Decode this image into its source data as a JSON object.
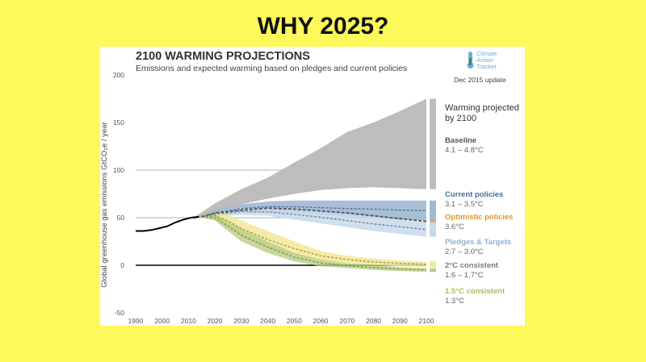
{
  "headline": "WHY 2025?",
  "logo": {
    "line1": "Climate",
    "line2": "Action",
    "line3": "Tracker",
    "icon": "thermometer-icon"
  },
  "update_note": "Dec 2015 update",
  "chart_data": {
    "type": "area",
    "title": "2100 WARMING PROJECTIONS",
    "subtitle": "Emissions and expected warming based on pledges and current policies",
    "ylabel": "Global greenhouse gas emissions  GtCO₂e / year",
    "xlabel": "",
    "xlim": [
      1990,
      2100
    ],
    "ylim": [
      -50,
      200
    ],
    "x_ticks": [
      "1990",
      "2000",
      "2010",
      "2020",
      "2030",
      "2040",
      "2050",
      "2060",
      "2070",
      "2080",
      "2090",
      "2100"
    ],
    "y_ticks": [
      "200",
      "150",
      "100",
      "50",
      "0",
      "-50"
    ],
    "gridlines": [
      100,
      50,
      0
    ],
    "legend_title": "Warming projected by 2100",
    "historical": {
      "x": [
        1990,
        1993,
        1996,
        1999,
        2002,
        2005,
        2008,
        2011,
        2014
      ],
      "y": [
        36,
        36,
        37,
        39,
        41,
        45,
        48,
        50,
        51
      ]
    },
    "series": [
      {
        "name": "Baseline",
        "range": "4.1 – 4.8°C",
        "color": "#bdbdbd",
        "x": [
          2012,
          2020,
          2030,
          2040,
          2050,
          2060,
          2070,
          2080,
          2090,
          2100
        ],
        "lower": [
          48,
          55,
          64,
          70,
          75,
          79,
          81,
          82,
          81,
          80
        ],
        "upper": [
          50,
          65,
          80,
          92,
          108,
          123,
          140,
          150,
          162,
          175
        ]
      },
      {
        "name": "Current policies",
        "range": "3.1 – 3.5°C",
        "color": "#9fb8d4",
        "x": [
          2015,
          2020,
          2030,
          2040,
          2050,
          2060,
          2070,
          2080,
          2090,
          2100
        ],
        "lower": [
          50,
          52,
          55,
          56,
          55,
          53,
          51,
          50,
          48,
          47
        ],
        "upper": [
          52,
          58,
          64,
          67,
          68,
          68,
          68,
          68,
          68,
          68
        ]
      },
      {
        "name": "Optimistic policies",
        "range": "3.6°C",
        "color": "#e0a94a",
        "x": [
          2015,
          2020,
          2030,
          2040,
          2050,
          2060,
          2070,
          2080,
          2090,
          2100
        ],
        "y": [
          51,
          55,
          58,
          60,
          59,
          57,
          55,
          52,
          49,
          46
        ]
      },
      {
        "name": "Pledges & Targets",
        "range": "2.7 – 3.0°C",
        "color": "#c7d9ea",
        "x": [
          2015,
          2020,
          2030,
          2040,
          2050,
          2060,
          2070,
          2080,
          2090,
          2100
        ],
        "lower": [
          50,
          51,
          53,
          52,
          48,
          44,
          40,
          36,
          33,
          30
        ],
        "upper": [
          52,
          56,
          60,
          60,
          59,
          57,
          54,
          51,
          48,
          45
        ]
      },
      {
        "name": "2°C consistent",
        "range": "1.6 – 1.7°C",
        "color": "#f2e79a",
        "x": [
          2015,
          2020,
          2025,
          2030,
          2040,
          2050,
          2060,
          2070,
          2080,
          2090,
          2100
        ],
        "lower": [
          50,
          48,
          40,
          30,
          18,
          10,
          5,
          2,
          0,
          -1,
          -2
        ],
        "upper": [
          52,
          56,
          53,
          47,
          36,
          25,
          15,
          10,
          7,
          5,
          4
        ]
      },
      {
        "name": "1.5°C consistent",
        "range": "1.3°C",
        "color": "#b9cd87",
        "x": [
          2015,
          2020,
          2025,
          2030,
          2040,
          2050,
          2060,
          2070,
          2080,
          2090,
          2100
        ],
        "lower": [
          50,
          47,
          36,
          25,
          13,
          4,
          -1,
          -3,
          -5,
          -6,
          -7
        ],
        "upper": [
          52,
          53,
          46,
          38,
          25,
          13,
          6,
          2,
          0,
          -2,
          -3
        ]
      }
    ]
  }
}
